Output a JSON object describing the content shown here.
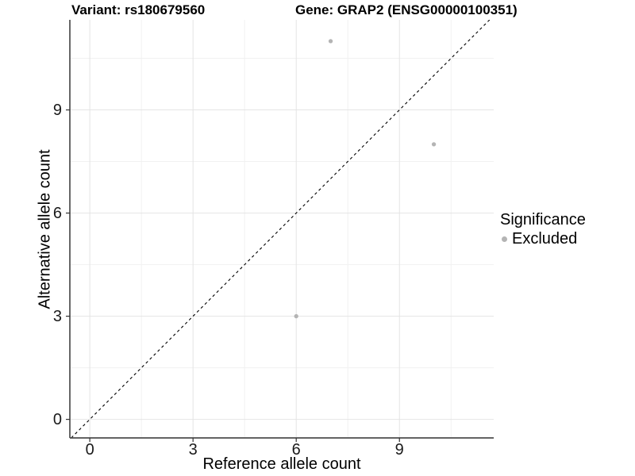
{
  "titles": {
    "left": "Variant: rs180679560",
    "right": "Gene: GRAP2 (ENSG00000100351)"
  },
  "chart_data": {
    "type": "scatter",
    "xlabel": "Reference allele count",
    "ylabel": "Alternative allele count",
    "xlim": [
      -0.58,
      11.74
    ],
    "ylim": [
      -0.54,
      11.62
    ],
    "x_ticks": [
      0,
      3,
      6,
      9
    ],
    "y_ticks": [
      0,
      3,
      6,
      9
    ],
    "x_minor_ticks": [
      1.5,
      4.5,
      7.5,
      10.5
    ],
    "y_minor_ticks": [
      1.5,
      4.5,
      7.5,
      10.5
    ],
    "grid": "major+minor",
    "reference_line": {
      "shape": "diagonal",
      "equation": "y = x",
      "style": "dashed",
      "color": "#000000"
    },
    "series": [
      {
        "name": "Excluded",
        "color": "#b4b4b4",
        "points": [
          {
            "x": 7,
            "y": 11
          },
          {
            "x": 10,
            "y": 8
          },
          {
            "x": 6,
            "y": 3
          }
        ]
      }
    ],
    "legend": {
      "title": "Significance",
      "position": "right",
      "items": [
        {
          "label": "Excluded",
          "color": "#b4b4b4"
        }
      ]
    }
  },
  "colors": {
    "background": "#ffffff",
    "grid_major": "#e4e4e4",
    "grid_minor": "#f1f1f1",
    "axis_line": "#4d4d4d",
    "tick": "#333333",
    "text": "#000000"
  }
}
